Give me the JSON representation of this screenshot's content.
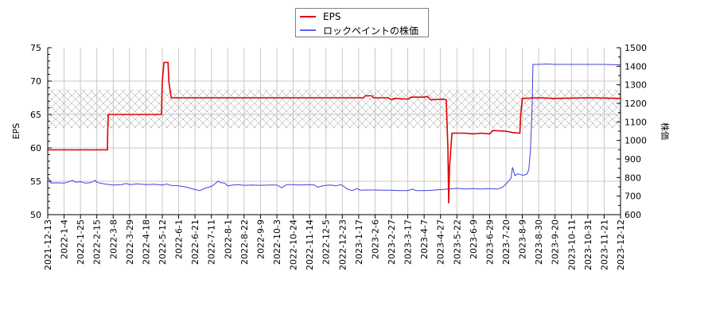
{
  "chart_data": {
    "type": "line",
    "title": "",
    "legend": {
      "position": "top-center",
      "entries": [
        {
          "name": "EPS",
          "color": "#e00000"
        },
        {
          "name": "ロックペイントの株価",
          "color": "#4040e0"
        }
      ]
    },
    "xlabel": "",
    "x_tick_labels": [
      "2021-12-13",
      "2022-1-4",
      "2022-1-25",
      "2022-2-15",
      "2022-3-8",
      "2022-3-29",
      "2022-4-18",
      "2022-5-12",
      "2022-6-1",
      "2022-6-21",
      "2022-7-11",
      "2022-8-1",
      "2022-8-22",
      "2022-9-9",
      "2022-10-3",
      "2022-10-24",
      "2022-11-14",
      "2022-12-5",
      "2022-12-23",
      "2023-1-17",
      "2023-2-6",
      "2023-2-27",
      "2023-3-17",
      "2023-4-7",
      "2023-4-27",
      "2023-5-22",
      "2023-6-9",
      "2023-6-29",
      "2023-7-20",
      "2023-8-9",
      "2023-8-30",
      "2023-9-20",
      "2023-10-11",
      "2023-10-31",
      "2023-11-21",
      "2023-12-12"
    ],
    "y_left": {
      "label": "EPS",
      "ylim": [
        50,
        75
      ],
      "ticks": [
        50,
        55,
        60,
        65,
        70,
        75
      ]
    },
    "y_right": {
      "label": "株価",
      "ylim": [
        600,
        1500
      ],
      "ticks": [
        600,
        700,
        800,
        900,
        1000,
        1100,
        1200,
        1300,
        1400,
        1500
      ]
    },
    "grid": true,
    "hatched_band": {
      "axis": "left",
      "from": 62.9,
      "to": 68.8
    },
    "series": [
      {
        "name": "EPS",
        "axis": "left",
        "color": "#e00000",
        "points": [
          [
            0,
            59.7
          ],
          [
            3.65,
            59.7
          ],
          [
            3.66,
            62.0
          ],
          [
            3.7,
            65.0
          ],
          [
            6.95,
            65.0
          ],
          [
            7.0,
            70.0
          ],
          [
            7.1,
            72.8
          ],
          [
            7.35,
            72.8
          ],
          [
            7.4,
            70.0
          ],
          [
            7.5,
            68.2
          ],
          [
            7.55,
            67.5
          ],
          [
            19.3,
            67.5
          ],
          [
            19.4,
            67.8
          ],
          [
            19.8,
            67.8
          ],
          [
            19.9,
            67.5
          ],
          [
            20.8,
            67.5
          ],
          [
            21.0,
            67.2
          ],
          [
            21.2,
            67.4
          ],
          [
            22.0,
            67.3
          ],
          [
            22.2,
            67.6
          ],
          [
            23.0,
            67.6
          ],
          [
            23.2,
            67.7
          ],
          [
            23.4,
            67.2
          ],
          [
            24.2,
            67.3
          ],
          [
            24.35,
            67.2
          ],
          [
            24.45,
            60.0
          ],
          [
            24.5,
            51.7
          ],
          [
            24.55,
            57.0
          ],
          [
            24.7,
            62.2
          ],
          [
            25.5,
            62.2
          ],
          [
            26.0,
            62.1
          ],
          [
            26.5,
            62.2
          ],
          [
            27.0,
            62.1
          ],
          [
            27.2,
            62.6
          ],
          [
            28.0,
            62.5
          ],
          [
            28.4,
            62.3
          ],
          [
            28.85,
            62.2
          ],
          [
            28.9,
            65.0
          ],
          [
            29.0,
            67.4
          ],
          [
            30.0,
            67.5
          ],
          [
            31.0,
            67.4
          ],
          [
            33.0,
            67.5
          ],
          [
            35.0,
            67.4
          ]
        ]
      },
      {
        "name": "ロックペイントの株価",
        "axis": "right",
        "color": "#4040e0",
        "points": [
          [
            0,
            800
          ],
          [
            0.1,
            790
          ],
          [
            0.2,
            770
          ],
          [
            0.5,
            772
          ],
          [
            1.0,
            770
          ],
          [
            1.3,
            778
          ],
          [
            1.5,
            785
          ],
          [
            1.7,
            775
          ],
          [
            2.0,
            778
          ],
          [
            2.3,
            770
          ],
          [
            2.6,
            772
          ],
          [
            2.9,
            785
          ],
          [
            3.0,
            775
          ],
          [
            3.2,
            770
          ],
          [
            3.5,
            765
          ],
          [
            4.0,
            760
          ],
          [
            4.5,
            762
          ],
          [
            4.8,
            768
          ],
          [
            5.0,
            762
          ],
          [
            5.5,
            766
          ],
          [
            6.0,
            762
          ],
          [
            6.5,
            764
          ],
          [
            7.0,
            760
          ],
          [
            7.3,
            765
          ],
          [
            7.5,
            758
          ],
          [
            8.0,
            755
          ],
          [
            8.5,
            748
          ],
          [
            9.0,
            735
          ],
          [
            9.3,
            730
          ],
          [
            9.6,
            742
          ],
          [
            10.0,
            752
          ],
          [
            10.2,
            765
          ],
          [
            10.4,
            780
          ],
          [
            10.6,
            772
          ],
          [
            10.8,
            770
          ],
          [
            11.0,
            755
          ],
          [
            11.3,
            760
          ],
          [
            11.6,
            762
          ],
          [
            12.0,
            758
          ],
          [
            12.5,
            760
          ],
          [
            13.0,
            758
          ],
          [
            13.5,
            760
          ],
          [
            14.0,
            760
          ],
          [
            14.3,
            745
          ],
          [
            14.6,
            762
          ],
          [
            15.0,
            762
          ],
          [
            15.5,
            760
          ],
          [
            16.0,
            762
          ],
          [
            16.3,
            760
          ],
          [
            16.5,
            748
          ],
          [
            16.8,
            755
          ],
          [
            17.0,
            758
          ],
          [
            17.3,
            760
          ],
          [
            17.6,
            755
          ],
          [
            17.9,
            762
          ],
          [
            18.1,
            752
          ],
          [
            18.3,
            738
          ],
          [
            18.6,
            730
          ],
          [
            18.9,
            740
          ],
          [
            19.1,
            732
          ],
          [
            19.5,
            733
          ],
          [
            20.0,
            733
          ],
          [
            20.5,
            732
          ],
          [
            21.0,
            732
          ],
          [
            21.5,
            730
          ],
          [
            22.0,
            730
          ],
          [
            22.3,
            738
          ],
          [
            22.5,
            730
          ],
          [
            23.0,
            730
          ],
          [
            23.5,
            732
          ],
          [
            24.0,
            735
          ],
          [
            24.5,
            738
          ],
          [
            25.0,
            742
          ],
          [
            25.5,
            738
          ],
          [
            26.0,
            740
          ],
          [
            26.5,
            738
          ],
          [
            27.0,
            740
          ],
          [
            27.5,
            738
          ],
          [
            27.8,
            748
          ],
          [
            28.1,
            775
          ],
          [
            28.3,
            795
          ],
          [
            28.4,
            855
          ],
          [
            28.55,
            810
          ],
          [
            28.7,
            820
          ],
          [
            28.9,
            815
          ],
          [
            29.1,
            812
          ],
          [
            29.3,
            820
          ],
          [
            29.4,
            845
          ],
          [
            29.5,
            960
          ],
          [
            29.6,
            1180
          ],
          [
            29.65,
            1410
          ],
          [
            30.0,
            1410
          ],
          [
            30.5,
            1412
          ],
          [
            31.0,
            1410
          ],
          [
            32.0,
            1410
          ],
          [
            33.0,
            1410
          ],
          [
            34.0,
            1410
          ],
          [
            35.0,
            1408
          ]
        ]
      }
    ]
  }
}
